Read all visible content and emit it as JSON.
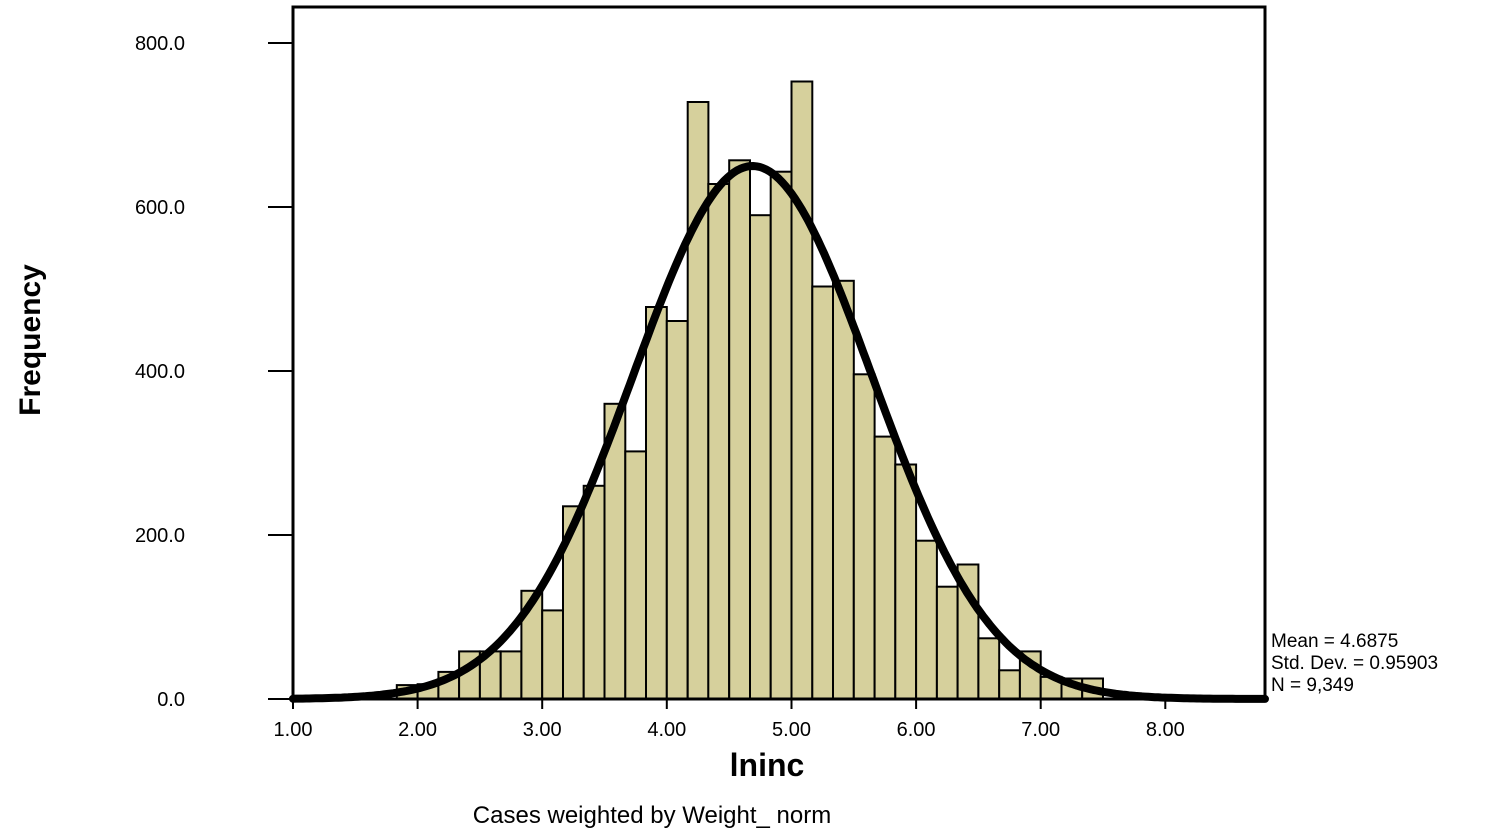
{
  "chart_data": {
    "type": "bar",
    "subtype": "histogram",
    "xlabel": "lninc",
    "ylabel": "Frequency",
    "xlim": [
      1.0,
      8.8
    ],
    "ylim": [
      0,
      800
    ],
    "bin_width": 0.1667,
    "bins": [
      {
        "x0": 1.833,
        "x1": 2.0,
        "value": 17
      },
      {
        "x0": 2.0,
        "x1": 2.167,
        "value": 18
      },
      {
        "x0": 2.167,
        "x1": 2.333,
        "value": 33
      },
      {
        "x0": 2.333,
        "x1": 2.5,
        "value": 58
      },
      {
        "x0": 2.5,
        "x1": 2.667,
        "value": 58
      },
      {
        "x0": 2.667,
        "x1": 2.833,
        "value": 58
      },
      {
        "x0": 2.833,
        "x1": 3.0,
        "value": 132
      },
      {
        "x0": 3.0,
        "x1": 3.167,
        "value": 108
      },
      {
        "x0": 3.167,
        "x1": 3.333,
        "value": 235
      },
      {
        "x0": 3.333,
        "x1": 3.5,
        "value": 260
      },
      {
        "x0": 3.5,
        "x1": 3.667,
        "value": 360
      },
      {
        "x0": 3.667,
        "x1": 3.833,
        "value": 302
      },
      {
        "x0": 3.833,
        "x1": 4.0,
        "value": 478
      },
      {
        "x0": 4.0,
        "x1": 4.167,
        "value": 461
      },
      {
        "x0": 4.167,
        "x1": 4.333,
        "value": 728
      },
      {
        "x0": 4.333,
        "x1": 4.5,
        "value": 628
      },
      {
        "x0": 4.5,
        "x1": 4.667,
        "value": 657
      },
      {
        "x0": 4.667,
        "x1": 4.833,
        "value": 590
      },
      {
        "x0": 4.833,
        "x1": 5.0,
        "value": 643
      },
      {
        "x0": 5.0,
        "x1": 5.167,
        "value": 753
      },
      {
        "x0": 5.167,
        "x1": 5.333,
        "value": 503
      },
      {
        "x0": 5.333,
        "x1": 5.5,
        "value": 510
      },
      {
        "x0": 5.5,
        "x1": 5.667,
        "value": 396
      },
      {
        "x0": 5.667,
        "x1": 5.833,
        "value": 320
      },
      {
        "x0": 5.833,
        "x1": 6.0,
        "value": 286
      },
      {
        "x0": 6.0,
        "x1": 6.167,
        "value": 193
      },
      {
        "x0": 6.167,
        "x1": 6.333,
        "value": 137
      },
      {
        "x0": 6.333,
        "x1": 6.5,
        "value": 164
      },
      {
        "x0": 6.5,
        "x1": 6.667,
        "value": 74
      },
      {
        "x0": 6.667,
        "x1": 6.833,
        "value": 35
      },
      {
        "x0": 6.833,
        "x1": 7.0,
        "value": 58
      },
      {
        "x0": 7.0,
        "x1": 7.167,
        "value": 27
      },
      {
        "x0": 7.167,
        "x1": 7.333,
        "value": 25
      },
      {
        "x0": 7.333,
        "x1": 7.5,
        "value": 25
      }
    ],
    "normal_curve": {
      "mean": 4.6875,
      "std_dev": 0.95903,
      "n": 9349,
      "peak": 650
    },
    "x_ticks": [
      "1.00",
      "2.00",
      "3.00",
      "4.00",
      "5.00",
      "6.00",
      "7.00",
      "8.00"
    ],
    "x_tick_values": [
      1,
      2,
      3,
      4,
      5,
      6,
      7,
      8
    ],
    "y_ticks": [
      "0.0",
      "200.0",
      "400.0",
      "600.0",
      "800.0"
    ],
    "y_tick_values": [
      0,
      200,
      400,
      600,
      800
    ],
    "stats": {
      "mean": "Mean = 4.6875",
      "std_dev": "Std. Dev. = 0.95903",
      "n": "N = 9,349"
    },
    "footnote": "Cases weighted by Weight_ norm",
    "grid": false,
    "colors": {
      "bar_fill": "#d6d09c",
      "bar_stroke": "#000000",
      "curve": "#000000",
      "frame": "#000000"
    }
  }
}
